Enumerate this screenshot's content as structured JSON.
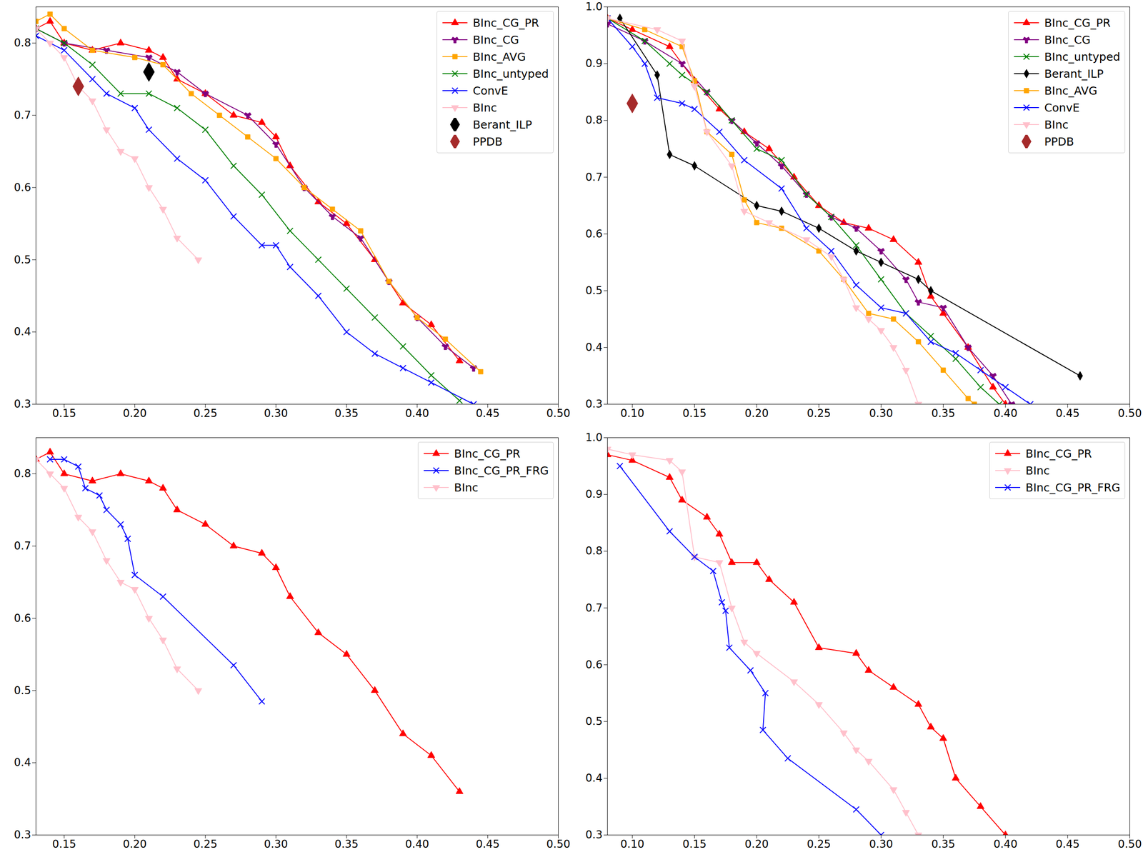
{
  "chart_data": [
    {
      "type": "line",
      "legend": "top-right",
      "xlim": [
        0.13,
        0.5
      ],
      "ylim": [
        0.3,
        0.85
      ],
      "xticks": [
        0.15,
        {
          "value": 0.2,
          "label": "0.20"
        },
        0.25,
        {
          "value": 0.3,
          "label": "0.30"
        },
        0.35,
        {
          "value": 0.4,
          "label": "0.40"
        },
        0.45,
        {
          "value": 0.5,
          "label": "0.50"
        }
      ],
      "yticks": [
        0.3,
        0.4,
        0.5,
        0.6,
        0.7,
        0.8
      ],
      "series": [
        {
          "name": "BInc_CG_PR",
          "color": "#ff0000",
          "marker": "triangle",
          "type": "line",
          "x": [
            0.13,
            0.14,
            0.15,
            0.17,
            0.19,
            0.21,
            0.22,
            0.23,
            0.25,
            0.27,
            0.29,
            0.3,
            0.31,
            0.33,
            0.35,
            0.37,
            0.39,
            0.41,
            0.43
          ],
          "values": [
            0.82,
            0.83,
            0.8,
            0.79,
            0.8,
            0.79,
            0.78,
            0.75,
            0.73,
            0.7,
            0.69,
            0.67,
            0.63,
            0.58,
            0.55,
            0.5,
            0.44,
            0.41,
            0.36
          ]
        },
        {
          "name": "BInc_CG",
          "color": "#800080",
          "marker": "wye",
          "type": "line",
          "x": [
            0.13,
            0.15,
            0.18,
            0.21,
            0.23,
            0.25,
            0.28,
            0.3,
            0.32,
            0.34,
            0.36,
            0.38,
            0.4,
            0.42,
            0.44
          ],
          "values": [
            0.82,
            0.8,
            0.79,
            0.78,
            0.76,
            0.73,
            0.7,
            0.66,
            0.6,
            0.56,
            0.53,
            0.47,
            0.42,
            0.38,
            0.35
          ]
        },
        {
          "name": "BInc_AVG",
          "color": "#ffa500",
          "marker": "square",
          "type": "line",
          "x": [
            0.13,
            0.14,
            0.15,
            0.17,
            0.2,
            0.22,
            0.24,
            0.26,
            0.28,
            0.3,
            0.32,
            0.34,
            0.36,
            0.38,
            0.4,
            0.42,
            0.445
          ],
          "values": [
            0.83,
            0.84,
            0.82,
            0.79,
            0.78,
            0.77,
            0.73,
            0.7,
            0.67,
            0.64,
            0.6,
            0.57,
            0.54,
            0.47,
            0.42,
            0.39,
            0.345
          ]
        },
        {
          "name": "BInc_untyped",
          "color": "#008000",
          "marker": "x",
          "type": "line",
          "x": [
            0.13,
            0.15,
            0.17,
            0.19,
            0.21,
            0.23,
            0.25,
            0.27,
            0.29,
            0.31,
            0.33,
            0.35,
            0.37,
            0.39,
            0.41,
            0.43
          ],
          "values": [
            0.82,
            0.8,
            0.77,
            0.73,
            0.73,
            0.71,
            0.68,
            0.63,
            0.59,
            0.54,
            0.5,
            0.46,
            0.42,
            0.38,
            0.34,
            0.305
          ]
        },
        {
          "name": "ConvE",
          "color": "#0000ff",
          "marker": "x",
          "type": "line",
          "x": [
            0.13,
            0.15,
            0.17,
            0.18,
            0.2,
            0.21,
            0.23,
            0.25,
            0.27,
            0.29,
            0.3,
            0.31,
            0.33,
            0.35,
            0.37,
            0.39,
            0.41,
            0.44
          ],
          "values": [
            0.81,
            0.79,
            0.75,
            0.73,
            0.71,
            0.68,
            0.64,
            0.61,
            0.56,
            0.52,
            0.52,
            0.49,
            0.45,
            0.4,
            0.37,
            0.35,
            0.33,
            0.3
          ]
        },
        {
          "name": "BInc",
          "color": "#ffc0cb",
          "marker": "triangle-down",
          "type": "line",
          "x": [
            0.13,
            0.14,
            0.15,
            0.16,
            0.17,
            0.18,
            0.19,
            0.2,
            0.21,
            0.22,
            0.23,
            0.245
          ],
          "values": [
            0.82,
            0.8,
            0.78,
            0.74,
            0.72,
            0.68,
            0.65,
            0.64,
            0.6,
            0.57,
            0.53,
            0.5
          ]
        },
        {
          "name": "Berant_ILP",
          "color": "#000000",
          "marker": "diamond",
          "type": "scatter",
          "x": [
            0.21
          ],
          "values": [
            0.76
          ]
        },
        {
          "name": "PPDB",
          "color": "#a52a2a",
          "marker": "diamond",
          "type": "scatter",
          "x": [
            0.16
          ],
          "values": [
            0.74
          ]
        }
      ]
    },
    {
      "type": "line",
      "legend": "top-right",
      "xlim": [
        0.08,
        0.5
      ],
      "ylim": [
        0.3,
        1.0
      ],
      "xticks": [
        {
          "value": 0.1,
          "label": "0.10"
        },
        0.15,
        {
          "value": 0.2,
          "label": "0.20"
        },
        0.25,
        {
          "value": 0.3,
          "label": "0.30"
        },
        0.35,
        {
          "value": 0.4,
          "label": "0.40"
        },
        0.45,
        {
          "value": 0.5,
          "label": "0.50"
        }
      ],
      "yticks": [
        0.3,
        0.4,
        0.5,
        0.6,
        0.7,
        0.8,
        0.9,
        {
          "value": 1.0,
          "label": "1.0"
        }
      ],
      "series": [
        {
          "name": "BInc_CG_PR",
          "color": "#ff0000",
          "marker": "triangle",
          "type": "line",
          "x": [
            0.08,
            0.1,
            0.13,
            0.15,
            0.17,
            0.19,
            0.21,
            0.23,
            0.25,
            0.27,
            0.29,
            0.31,
            0.33,
            0.34,
            0.35,
            0.37,
            0.39,
            0.4
          ],
          "values": [
            0.98,
            0.96,
            0.93,
            0.87,
            0.82,
            0.78,
            0.75,
            0.7,
            0.65,
            0.62,
            0.61,
            0.59,
            0.55,
            0.49,
            0.46,
            0.4,
            0.33,
            0.3
          ]
        },
        {
          "name": "BInc_CG",
          "color": "#800080",
          "marker": "wye",
          "type": "line",
          "x": [
            0.08,
            0.11,
            0.14,
            0.16,
            0.18,
            0.2,
            0.22,
            0.24,
            0.26,
            0.28,
            0.3,
            0.32,
            0.33,
            0.35,
            0.37,
            0.39,
            0.405
          ],
          "values": [
            0.97,
            0.94,
            0.9,
            0.85,
            0.8,
            0.76,
            0.72,
            0.67,
            0.63,
            0.61,
            0.57,
            0.52,
            0.48,
            0.47,
            0.4,
            0.35,
            0.3
          ]
        },
        {
          "name": "BInc_untyped",
          "color": "#008000",
          "marker": "x",
          "type": "line",
          "x": [
            0.08,
            0.11,
            0.13,
            0.14,
            0.16,
            0.18,
            0.2,
            0.22,
            0.24,
            0.26,
            0.28,
            0.3,
            0.32,
            0.34,
            0.36,
            0.38,
            0.395
          ],
          "values": [
            0.98,
            0.94,
            0.9,
            0.88,
            0.85,
            0.8,
            0.75,
            0.73,
            0.67,
            0.63,
            0.58,
            0.52,
            0.46,
            0.42,
            0.38,
            0.33,
            0.3
          ]
        },
        {
          "name": "Berant_ILP",
          "color": "#000000",
          "marker": "diamond",
          "type": "line",
          "x": [
            0.09,
            0.12,
            0.13,
            0.15,
            0.2,
            0.22,
            0.25,
            0.28,
            0.3,
            0.33,
            0.34,
            0.46
          ],
          "values": [
            0.98,
            0.88,
            0.74,
            0.72,
            0.65,
            0.64,
            0.61,
            0.57,
            0.55,
            0.52,
            0.5,
            0.35
          ]
        },
        {
          "name": "BInc_AVG",
          "color": "#ffa500",
          "marker": "square",
          "type": "line",
          "x": [
            0.08,
            0.11,
            0.14,
            0.15,
            0.16,
            0.18,
            0.19,
            0.2,
            0.22,
            0.25,
            0.27,
            0.29,
            0.31,
            0.33,
            0.35,
            0.37,
            0.375
          ],
          "values": [
            0.98,
            0.96,
            0.93,
            0.87,
            0.78,
            0.74,
            0.66,
            0.62,
            0.61,
            0.57,
            0.52,
            0.46,
            0.45,
            0.41,
            0.36,
            0.31,
            0.3
          ]
        },
        {
          "name": "ConvE",
          "color": "#0000ff",
          "marker": "x",
          "type": "line",
          "x": [
            0.08,
            0.1,
            0.11,
            0.12,
            0.14,
            0.15,
            0.17,
            0.19,
            0.22,
            0.24,
            0.26,
            0.28,
            0.3,
            0.32,
            0.34,
            0.36,
            0.38,
            0.4,
            0.42
          ],
          "values": [
            0.98,
            0.93,
            0.9,
            0.84,
            0.83,
            0.82,
            0.78,
            0.73,
            0.68,
            0.61,
            0.57,
            0.51,
            0.47,
            0.46,
            0.41,
            0.39,
            0.36,
            0.33,
            0.3
          ]
        },
        {
          "name": "BInc",
          "color": "#ffc0cb",
          "marker": "triangle-down",
          "type": "line",
          "x": [
            0.08,
            0.12,
            0.14,
            0.15,
            0.16,
            0.18,
            0.19,
            0.21,
            0.24,
            0.26,
            0.27,
            0.28,
            0.29,
            0.3,
            0.31,
            0.32,
            0.33
          ],
          "values": [
            0.98,
            0.96,
            0.94,
            0.86,
            0.78,
            0.72,
            0.64,
            0.62,
            0.59,
            0.56,
            0.52,
            0.47,
            0.45,
            0.43,
            0.4,
            0.36,
            0.3
          ]
        },
        {
          "name": "PPDB",
          "color": "#a52a2a",
          "marker": "diamond",
          "type": "scatter",
          "x": [
            0.1
          ],
          "values": [
            0.83
          ]
        }
      ]
    },
    {
      "type": "line",
      "legend": "top-right",
      "xlim": [
        0.13,
        0.5
      ],
      "ylim": [
        0.3,
        0.85
      ],
      "xticks": [
        0.15,
        {
          "value": 0.2,
          "label": "0.20"
        },
        0.25,
        {
          "value": 0.3,
          "label": "0.30"
        },
        0.35,
        {
          "value": 0.4,
          "label": "0.40"
        },
        0.45,
        {
          "value": 0.5,
          "label": "0.50"
        }
      ],
      "yticks": [
        0.3,
        0.4,
        0.5,
        0.6,
        0.7,
        0.8
      ],
      "series": [
        {
          "name": "BInc_CG_PR",
          "color": "#ff0000",
          "marker": "triangle",
          "type": "line",
          "x": [
            0.13,
            0.14,
            0.15,
            0.17,
            0.19,
            0.21,
            0.22,
            0.23,
            0.25,
            0.27,
            0.29,
            0.3,
            0.31,
            0.33,
            0.35,
            0.37,
            0.39,
            0.41,
            0.43
          ],
          "values": [
            0.82,
            0.83,
            0.8,
            0.79,
            0.8,
            0.79,
            0.78,
            0.75,
            0.73,
            0.7,
            0.69,
            0.67,
            0.63,
            0.58,
            0.55,
            0.5,
            0.44,
            0.41,
            0.36
          ]
        },
        {
          "name": "BInc_CG_PR_FRG",
          "color": "#0000ff",
          "marker": "x",
          "type": "line",
          "x": [
            0.14,
            0.15,
            0.16,
            0.165,
            0.175,
            0.18,
            0.19,
            0.195,
            0.2,
            0.22,
            0.27,
            0.29
          ],
          "values": [
            0.82,
            0.82,
            0.81,
            0.78,
            0.77,
            0.75,
            0.73,
            0.71,
            0.66,
            0.63,
            0.535,
            0.485
          ]
        },
        {
          "name": "BInc",
          "color": "#ffc0cb",
          "marker": "triangle-down",
          "type": "line",
          "x": [
            0.13,
            0.14,
            0.15,
            0.16,
            0.17,
            0.18,
            0.19,
            0.2,
            0.21,
            0.22,
            0.23,
            0.245
          ],
          "values": [
            0.82,
            0.8,
            0.78,
            0.74,
            0.72,
            0.68,
            0.65,
            0.64,
            0.6,
            0.57,
            0.53,
            0.5
          ]
        }
      ]
    },
    {
      "type": "line",
      "legend": "top-right",
      "xlim": [
        0.08,
        0.5
      ],
      "ylim": [
        0.3,
        1.0
      ],
      "xticks": [
        {
          "value": 0.1,
          "label": "0.10"
        },
        0.15,
        {
          "value": 0.2,
          "label": "0.20"
        },
        0.25,
        {
          "value": 0.3,
          "label": "0.30"
        },
        0.35,
        {
          "value": 0.4,
          "label": "0.40"
        },
        0.45,
        {
          "value": 0.5,
          "label": "0.50"
        }
      ],
      "yticks": [
        0.3,
        0.4,
        0.5,
        0.6,
        0.7,
        0.8,
        0.9,
        {
          "value": 1.0,
          "label": "1.0"
        }
      ],
      "series": [
        {
          "name": "BInc_CG_PR",
          "color": "#ff0000",
          "marker": "triangle",
          "type": "line",
          "x": [
            0.08,
            0.1,
            0.13,
            0.14,
            0.16,
            0.17,
            0.18,
            0.2,
            0.21,
            0.23,
            0.25,
            0.28,
            0.29,
            0.31,
            0.33,
            0.34,
            0.35,
            0.36,
            0.38,
            0.4
          ],
          "values": [
            0.97,
            0.96,
            0.93,
            0.89,
            0.86,
            0.83,
            0.78,
            0.78,
            0.75,
            0.71,
            0.63,
            0.62,
            0.59,
            0.56,
            0.53,
            0.49,
            0.47,
            0.4,
            0.35,
            0.3
          ]
        },
        {
          "name": "BInc",
          "color": "#ffc0cb",
          "marker": "triangle-down",
          "type": "line",
          "x": [
            0.08,
            0.1,
            0.13,
            0.14,
            0.15,
            0.17,
            0.18,
            0.19,
            0.2,
            0.23,
            0.25,
            0.27,
            0.28,
            0.29,
            0.31,
            0.32,
            0.33
          ],
          "values": [
            0.98,
            0.97,
            0.96,
            0.94,
            0.79,
            0.78,
            0.7,
            0.64,
            0.62,
            0.57,
            0.53,
            0.48,
            0.45,
            0.43,
            0.38,
            0.34,
            0.3
          ]
        },
        {
          "name": "BInc_CG_PR_FRG",
          "color": "#0000ff",
          "marker": "x",
          "type": "line",
          "x": [
            0.09,
            0.13,
            0.15,
            0.165,
            0.172,
            0.175,
            0.178,
            0.195,
            0.207,
            0.205,
            0.225,
            0.28,
            0.3
          ],
          "values": [
            0.95,
            0.835,
            0.79,
            0.765,
            0.71,
            0.695,
            0.63,
            0.59,
            0.55,
            0.485,
            0.435,
            0.345,
            0.3
          ]
        }
      ]
    }
  ]
}
